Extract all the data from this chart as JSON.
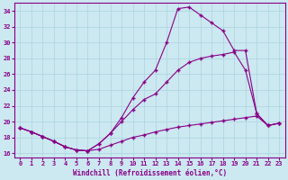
{
  "xlabel": "Windchill (Refroidissement éolien,°C)",
  "background_color": "#cce8f0",
  "line_color": "#880088",
  "xlim": [
    -0.5,
    23.5
  ],
  "ylim": [
    15.5,
    35.0
  ],
  "yticks": [
    16,
    18,
    20,
    22,
    24,
    26,
    28,
    30,
    32,
    34
  ],
  "xticks": [
    0,
    1,
    2,
    3,
    4,
    5,
    6,
    7,
    8,
    9,
    10,
    11,
    12,
    13,
    14,
    15,
    16,
    17,
    18,
    19,
    20,
    21,
    22,
    23
  ],
  "line1_y": [
    19.2,
    18.7,
    18.1,
    17.5,
    16.8,
    16.4,
    16.3,
    16.5,
    17.0,
    17.5,
    18.0,
    18.3,
    18.7,
    19.0,
    19.3,
    19.5,
    19.7,
    19.9,
    20.1,
    20.3,
    20.5,
    20.7,
    19.5,
    19.8
  ],
  "line2_y": [
    19.2,
    18.7,
    18.1,
    17.5,
    16.8,
    16.4,
    16.3,
    17.2,
    18.5,
    20.0,
    21.5,
    22.8,
    23.5,
    25.0,
    26.5,
    27.5,
    28.0,
    28.3,
    28.5,
    28.8,
    26.5,
    21.0,
    19.5,
    19.8
  ],
  "line3_y": [
    19.2,
    18.7,
    18.1,
    17.5,
    16.8,
    16.4,
    16.3,
    17.2,
    18.5,
    20.5,
    23.0,
    25.0,
    26.5,
    30.0,
    34.3,
    34.5,
    33.5,
    32.5,
    31.5,
    29.0,
    29.0,
    21.0,
    19.5,
    19.8
  ],
  "marker": "+",
  "markersize": 3,
  "linewidth": 0.8,
  "tick_fontsize": 5.0,
  "xlabel_fontsize": 5.5
}
